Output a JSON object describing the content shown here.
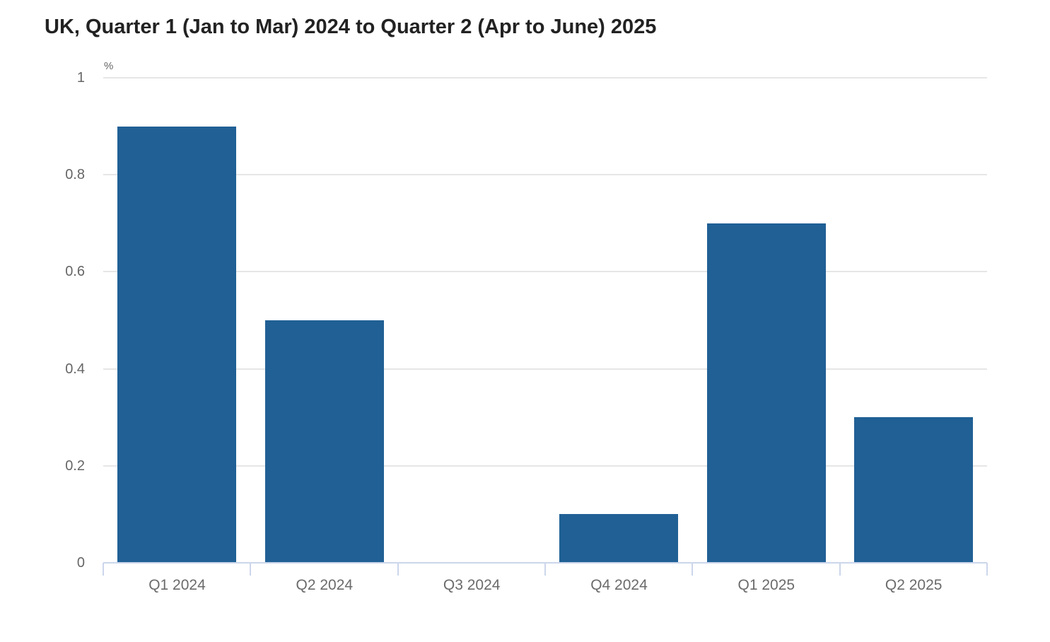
{
  "chart_data": {
    "type": "bar",
    "title": "UK, Quarter 1 (Jan to Mar) 2024 to Quarter 2 (Apr to June) 2025",
    "ylabel": "%",
    "xlabel": "",
    "categories": [
      "Q1 2024",
      "Q2 2024",
      "Q3 2024",
      "Q4 2024",
      "Q1 2025",
      "Q2 2025"
    ],
    "values": [
      0.9,
      0.5,
      0,
      0.1,
      0.7,
      0.3
    ],
    "ylim": [
      0,
      1
    ],
    "yticks": [
      "0",
      "0.2",
      "0.4",
      "0.6",
      "0.8",
      "1"
    ],
    "grid": true,
    "legend": false,
    "colors": {
      "bar": "#206095",
      "axis_line": "#ccd6eb",
      "gridline": "#e6e6e6",
      "tick_label": "#666666",
      "title": "#222222",
      "background": "#ffffff"
    }
  }
}
